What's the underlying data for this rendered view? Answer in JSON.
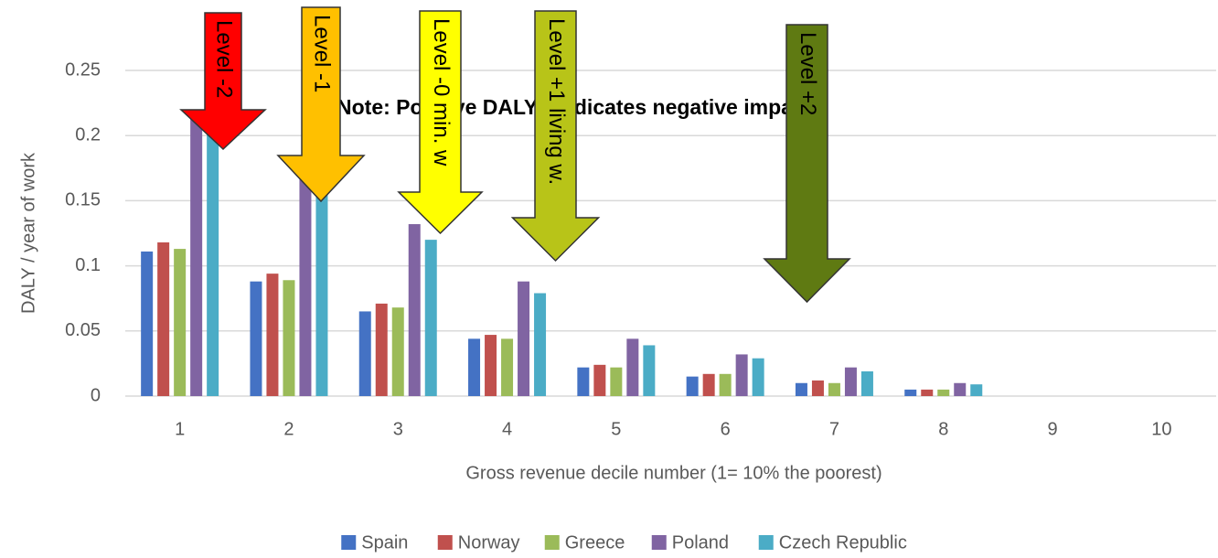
{
  "chart_data": {
    "type": "bar",
    "y_label": "DALY / year of work",
    "x_label": "Gross revenue decile number (1= 10% the poorest)",
    "note": "Note: Positive DALYs indicates negative impacts.",
    "categories": [
      "1",
      "2",
      "3",
      "4",
      "5",
      "6",
      "7",
      "8",
      "9",
      "10"
    ],
    "series": [
      {
        "name": "Spain",
        "color": "#4472c4",
        "values": [
          0.111,
          0.088,
          0.065,
          0.044,
          0.022,
          0.015,
          0.01,
          0.005,
          0,
          0
        ]
      },
      {
        "name": "Norway",
        "color": "#c0504d",
        "values": [
          0.118,
          0.094,
          0.071,
          0.047,
          0.024,
          0.017,
          0.012,
          0.005,
          0,
          0
        ]
      },
      {
        "name": "Greece",
        "color": "#9bbb59",
        "values": [
          0.113,
          0.089,
          0.068,
          0.044,
          0.022,
          0.017,
          0.01,
          0.005,
          0,
          0
        ]
      },
      {
        "name": "Poland",
        "color": "#8064a2",
        "values": [
          0.215,
          0.175,
          0.132,
          0.088,
          0.044,
          0.032,
          0.022,
          0.01,
          0,
          0
        ]
      },
      {
        "name": "Czech Republic",
        "color": "#4bacc6",
        "values": [
          0.205,
          0.16,
          0.12,
          0.079,
          0.039,
          0.029,
          0.019,
          0.009,
          0,
          0
        ]
      }
    ],
    "ylim": [
      0,
      0.25
    ],
    "yticks": [
      0,
      0.05,
      0.1,
      0.15,
      0.2,
      0.25
    ],
    "grid": true,
    "legend": "bottom",
    "annotations": [
      {
        "text": "Level -2",
        "color": "#ff0000"
      },
      {
        "text": "Level -1",
        "color": "#ffc000"
      },
      {
        "text": "Level -0 min. w",
        "color": "#ffff00"
      },
      {
        "text": "Level +1 living w.",
        "color": "#b8c418"
      },
      {
        "text": "Level +2",
        "color": "#5f7a12"
      }
    ]
  }
}
